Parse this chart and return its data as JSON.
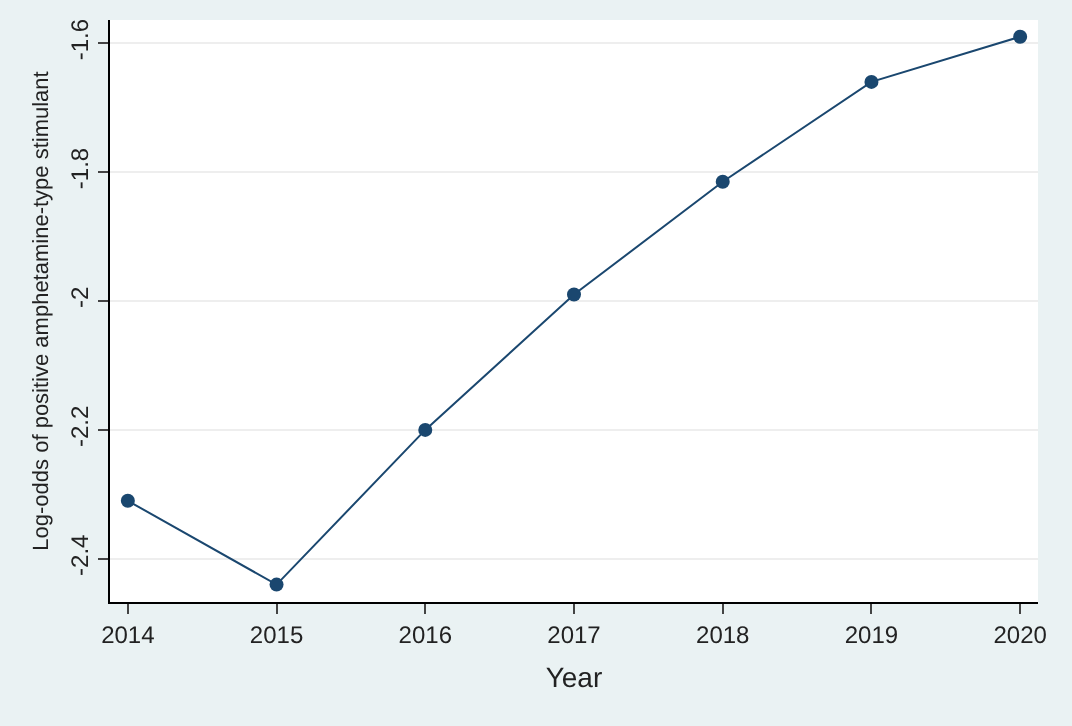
{
  "chart_data": {
    "type": "line",
    "xlabel": "Year",
    "ylabel": "Log-odds of positive amphetamine-type stimulant",
    "x": [
      2014,
      2015,
      2016,
      2017,
      2018,
      2019,
      2020
    ],
    "series": [
      {
        "color": "#1a476f",
        "values": [
          -2.31,
          -2.44,
          -2.2,
          -1.99,
          -1.815,
          -1.66,
          -1.59
        ]
      }
    ],
    "xlim": [
      2013.88,
      2020.12
    ],
    "xticks": [
      2014,
      2015,
      2016,
      2017,
      2018,
      2019,
      2020
    ],
    "ylim": [
      -2.467,
      -1.564
    ],
    "yticks": [
      -2.4,
      -2.2,
      -2,
      -1.8,
      -1.6
    ],
    "grid": "y",
    "marker": "circle",
    "line_style": "solid"
  }
}
